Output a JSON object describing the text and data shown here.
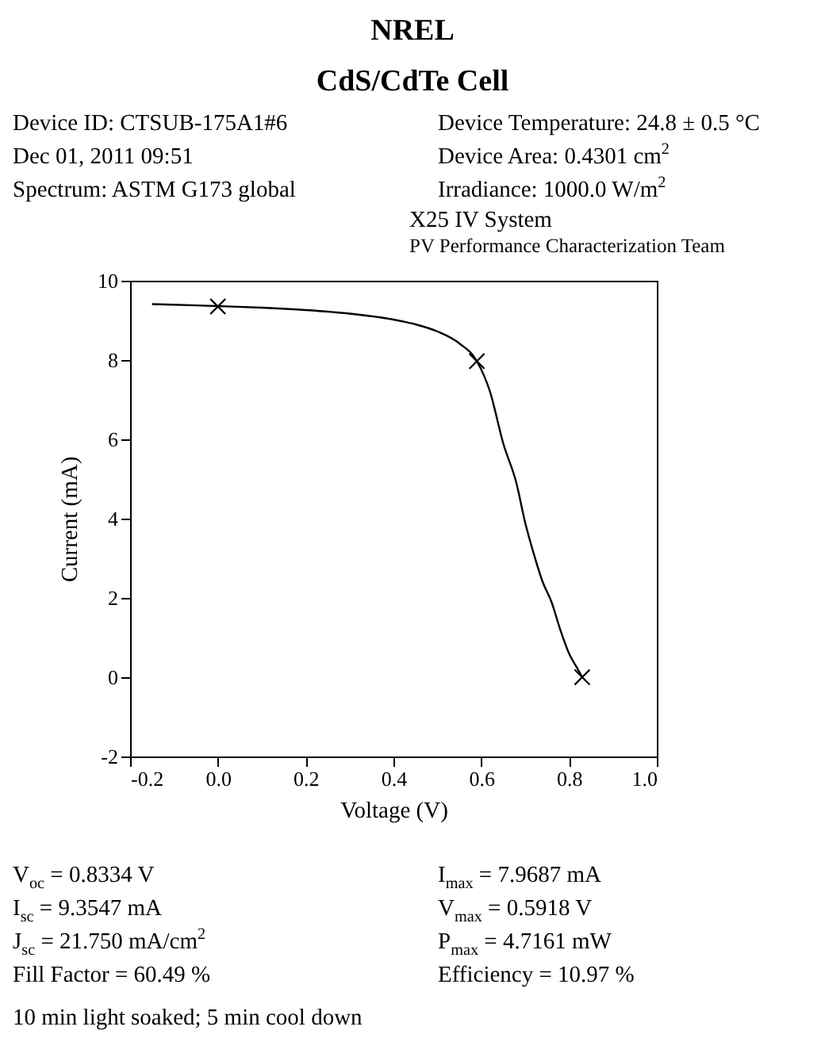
{
  "chart_data": {
    "type": "line",
    "title": "NREL",
    "subtitle": "CdS/CdTe Cell",
    "xlabel": "Voltage (V)",
    "ylabel": "Current (mA)",
    "annotations": [
      "Device ID: CTSUB-175A1#6",
      "Device Temperature: 24.8 ± 0.5 °C",
      "Dec 01, 2011 09:51",
      "Device Area: 0.4301 cm$^{2}$",
      "Spectrum: ASTM G173 global",
      "Irradiance: 1000.0 W/m$^{2}$",
      "X25 IV System",
      "PV Performance Characterization Team",
      "V$_{oc}$ = 0.8334 V",
      "I$_{max}$ = 7.9687 mA",
      "I$_{sc}$ = 9.3547 mA",
      "V$_{max}$ = 0.5918 V",
      "J$_{sc}$ = 21.750 mA/cm$^{2}$",
      "P$_{max}$ = 4.7161 mW",
      "Fill Factor = 60.49 %",
      "Efficiency = 10.97 %",
      "10 min light soaked; 5 min cool down"
    ],
    "series": [
      {
        "type": "line",
        "color": "#000000",
        "x": [
          -0.15,
          0,
          0.1,
          0.2,
          0.3,
          0.4,
          0.45,
          0.5,
          0.55,
          0.59,
          0.62,
          0.65,
          0.68,
          0.7,
          0.72,
          0.74,
          0.76,
          0.78,
          0.8,
          0.82,
          0.83
        ],
        "values": [
          9.41,
          9.36,
          9.32,
          9.26,
          9.17,
          9.02,
          8.9,
          8.72,
          8.42,
          7.97,
          7.2,
          5.9,
          4.9,
          3.9,
          3.1,
          2.4,
          1.9,
          1.2,
          0.6,
          0.2,
          0
        ]
      },
      {
        "type": "scatter",
        "color": "#000000",
        "marker": "cross",
        "x": [
          0,
          0.59,
          0.83
        ],
        "values": [
          9.35,
          7.97,
          0
        ]
      }
    ],
    "grid": false,
    "xlim": [
      -0.2,
      1.0
    ],
    "ylim": [
      -2,
      10
    ],
    "xticks": [
      {
        "value": -0.2,
        "label": "-0.2"
      },
      {
        "value": 0,
        "label": "0.0"
      },
      0.2,
      0.4,
      0.6,
      0.8,
      {
        "value": 1,
        "label": "1.0"
      }
    ],
    "yticks": [
      -2,
      0,
      2,
      4,
      6,
      8,
      10
    ]
  }
}
